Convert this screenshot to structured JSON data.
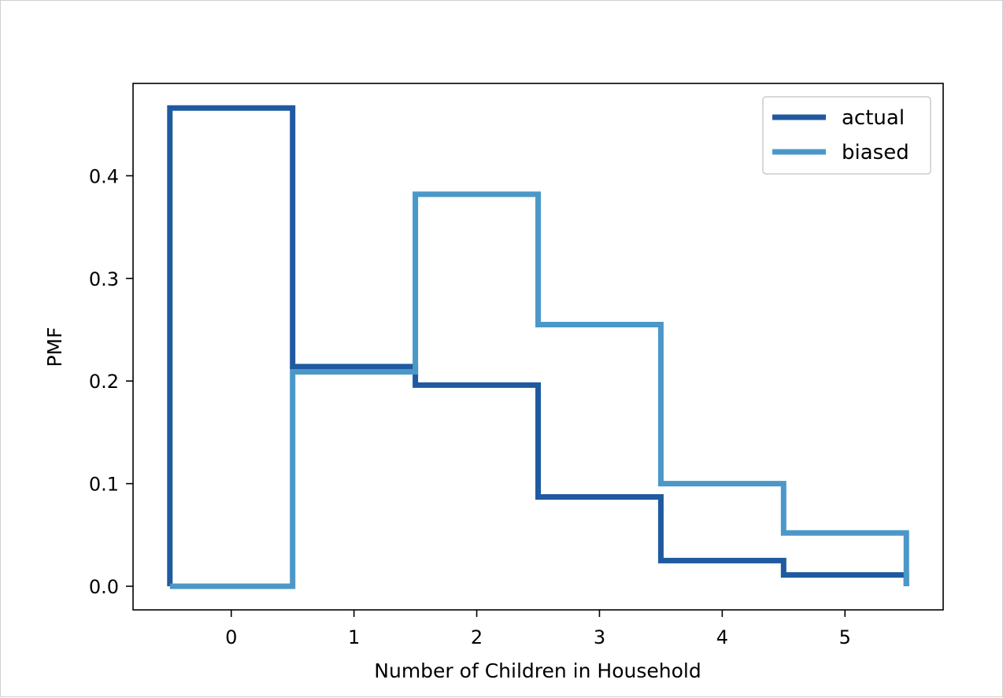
{
  "chart_data": {
    "type": "line",
    "step": "mid",
    "title": "",
    "xlabel": "Number of Children in Household",
    "ylabel": "PMF",
    "xlim": [
      -0.8,
      5.8
    ],
    "ylim": [
      -0.023,
      0.49
    ],
    "xticks": [
      0,
      1,
      2,
      3,
      4,
      5
    ],
    "xtick_labels": [
      "0",
      "1",
      "2",
      "3",
      "4",
      "5"
    ],
    "yticks": [
      0.0,
      0.1,
      0.2,
      0.3,
      0.4
    ],
    "ytick_labels": [
      "0.0",
      "0.1",
      "0.2",
      "0.3",
      "0.4"
    ],
    "grid": false,
    "legend_position": "upper right",
    "x": [
      0,
      1,
      2,
      3,
      4,
      5
    ],
    "series": [
      {
        "name": "actual",
        "color": "#1f5aa0",
        "values": [
          0.466,
          0.214,
          0.196,
          0.087,
          0.025,
          0.011
        ]
      },
      {
        "name": "biased",
        "color": "#4b98c8",
        "values": [
          0.0,
          0.209,
          0.382,
          0.255,
          0.1,
          0.052
        ]
      }
    ]
  }
}
